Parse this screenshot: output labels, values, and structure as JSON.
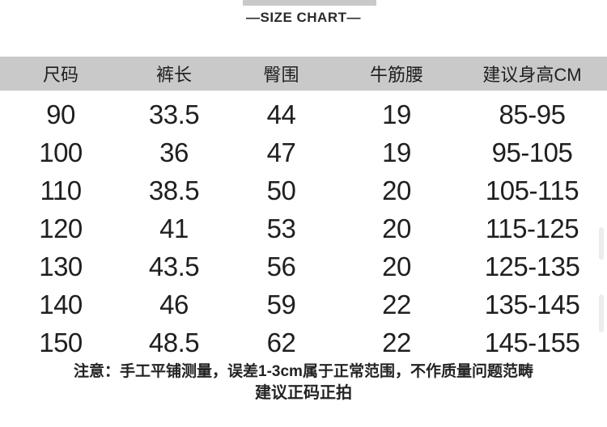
{
  "title": "—SIZE CHART—",
  "chart_data": {
    "type": "table",
    "title": "—SIZE CHART—",
    "columns": [
      "尺码",
      "裤长",
      "臀围",
      "牛筋腰",
      "建议身高CM"
    ],
    "rows": [
      [
        "90",
        "33.5",
        "44",
        "19",
        "85-95"
      ],
      [
        "100",
        "36",
        "47",
        "19",
        "95-105"
      ],
      [
        "110",
        "38.5",
        "50",
        "20",
        "105-115"
      ],
      [
        "120",
        "41",
        "53",
        "20",
        "115-125"
      ],
      [
        "130",
        "43.5",
        "56",
        "20",
        "125-135"
      ],
      [
        "140",
        "46",
        "59",
        "22",
        "135-145"
      ],
      [
        "150",
        "48.5",
        "62",
        "22",
        "145-155"
      ]
    ]
  },
  "notes": {
    "line1": "注意：手工平铺测量，误差1-3cm属于正常范围，不作质量问题范畴",
    "line2": "建议正码正拍"
  },
  "colors": {
    "header_bg": "#c9c9c9",
    "top_bar": "#c9c9c9",
    "text": "#1f1f1f",
    "artifact": "#ececec"
  }
}
